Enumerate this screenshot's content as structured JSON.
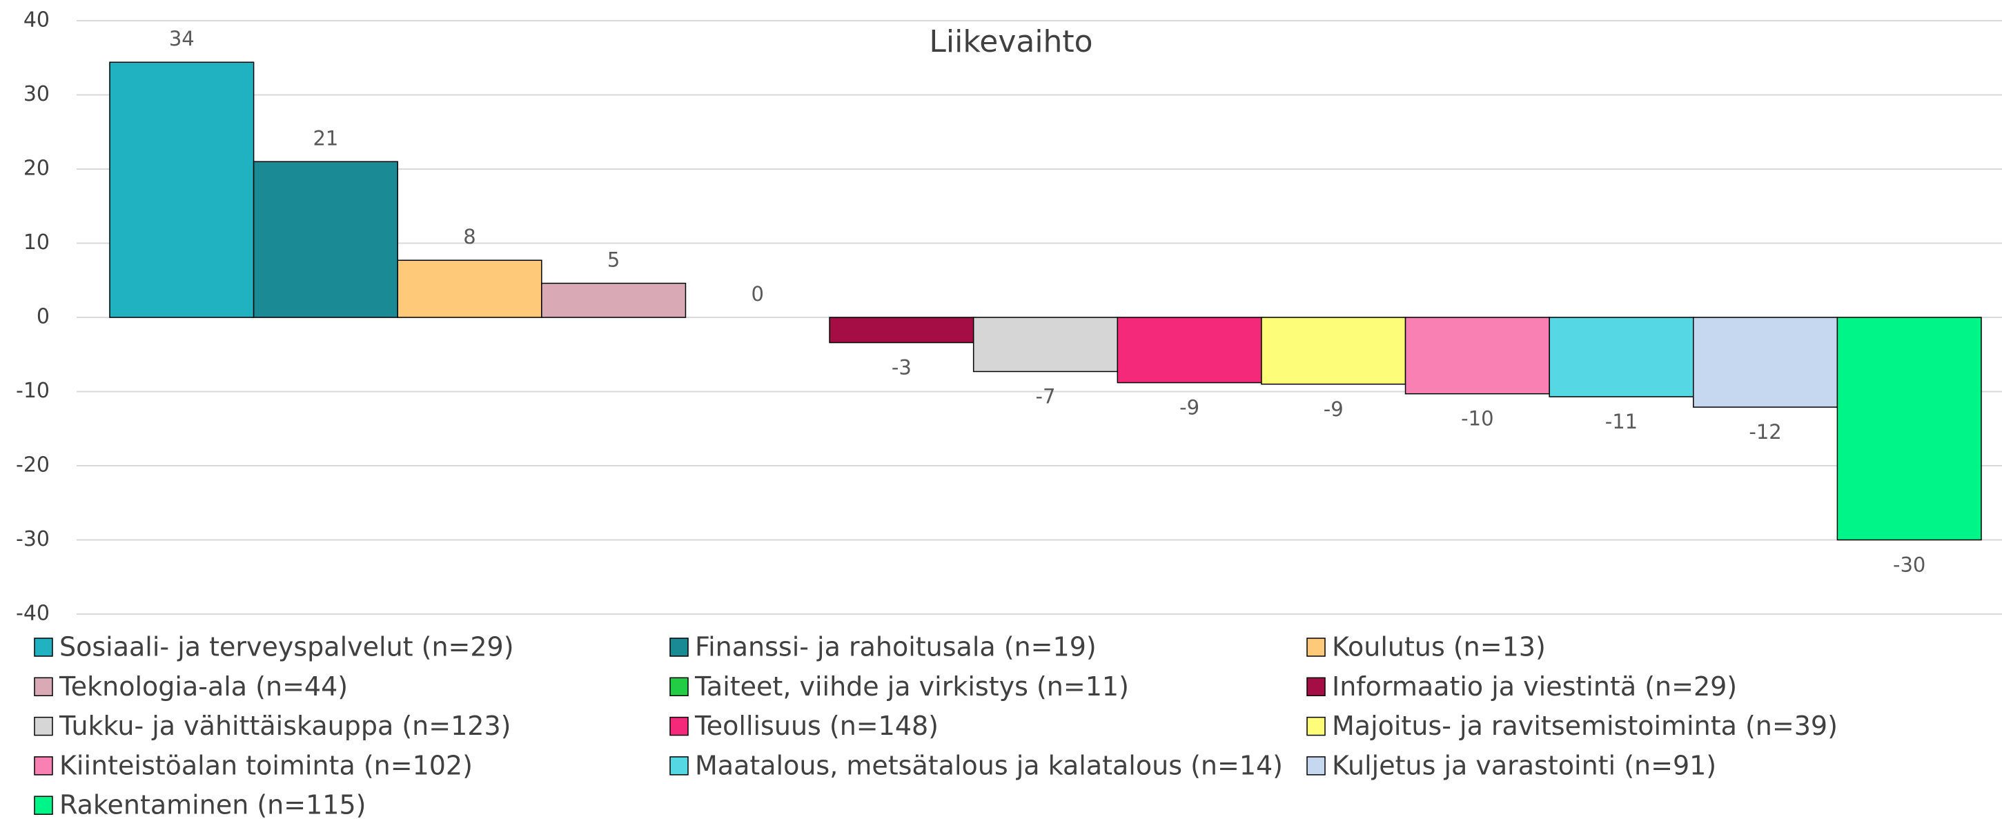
{
  "chart_data": {
    "type": "bar",
    "title": "Liikevaihto",
    "ylim": [
      -40,
      40
    ],
    "yticks": [
      -40,
      -30,
      -20,
      -10,
      0,
      10,
      20,
      30,
      40
    ],
    "grid": true,
    "legend": "bottom",
    "series": [
      {
        "name": "Sosiaali- ja terveyspalvelut (n=29)",
        "color": "#20b2c0",
        "values": [
          34.4
        ],
        "value_labels": [
          "34"
        ]
      },
      {
        "name": "Finanssi- ja rahoitusala (n=19)",
        "color": "#1a8a94",
        "values": [
          21
        ],
        "value_labels": [
          "21"
        ]
      },
      {
        "name": "Koulutus (n=13)",
        "color": "#ffc97a",
        "values": [
          7.7
        ],
        "value_labels": [
          "8"
        ]
      },
      {
        "name": "Teknologia-ala (n=44)",
        "color": "#d9aab5",
        "values": [
          4.6
        ],
        "value_labels": [
          "5"
        ]
      },
      {
        "name": "Taiteet, viihde ja virkistys (n=11)",
        "color": "#22cc44",
        "values": [
          0
        ],
        "value_labels": [
          "0"
        ]
      },
      {
        "name": "Informaatio ja viestintä (n=29)",
        "color": "#a50d45",
        "values": [
          -3.4
        ],
        "value_labels": [
          "-3"
        ]
      },
      {
        "name": "Tukku- ja vähittäiskauppa (n=123)",
        "color": "#d6d6d6",
        "values": [
          -7.3
        ],
        "value_labels": [
          "-7"
        ]
      },
      {
        "name": "Teollisuus (n=148)",
        "color": "#f5297a",
        "values": [
          -8.8
        ],
        "value_labels": [
          "-9"
        ]
      },
      {
        "name": "Majoitus- ja ravitsemistoiminta (n=39)",
        "color": "#fdfd7a",
        "values": [
          -9
        ],
        "value_labels": [
          "-9"
        ]
      },
      {
        "name": "Kiinteistöalan toiminta (n=102)",
        "color": "#f880b2",
        "values": [
          -10.3
        ],
        "value_labels": [
          "-10"
        ]
      },
      {
        "name": "Maatalous, metsätalous ja kalatalous (n=14)",
        "color": "#55d8e4",
        "values": [
          -10.7
        ],
        "value_labels": [
          "-11"
        ]
      },
      {
        "name": "Kuljetus ja varastointi (n=91)",
        "color": "#c5d8f0",
        "values": [
          -12.1
        ],
        "value_labels": [
          "-12"
        ]
      },
      {
        "name": "Rakentaminen (n=115)",
        "color": "#00f589",
        "values": [
          -30
        ],
        "value_labels": [
          "-30"
        ]
      }
    ]
  }
}
